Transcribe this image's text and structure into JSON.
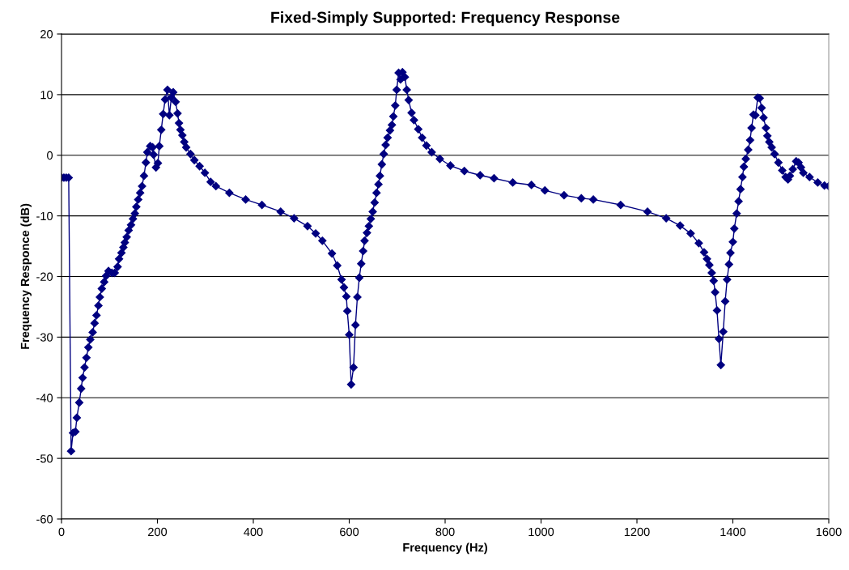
{
  "chart_data": {
    "type": "line",
    "title": "Fixed-Simply Supported: Frequency Response",
    "xlabel": "Frequency (Hz)",
    "ylabel": "Frequency Responce (dB)",
    "xlim": [
      0,
      1600
    ],
    "xticks": [
      0,
      200,
      400,
      600,
      800,
      1000,
      1200,
      1400,
      1600
    ],
    "ylim": [
      -60,
      20
    ],
    "yticks": [
      -60,
      -50,
      -40,
      -30,
      -20,
      -10,
      0,
      10,
      20
    ],
    "grid": "y",
    "marker": "diamond",
    "line_style": "solid",
    "series": [
      {
        "color": "#000080",
        "x": [
          0,
          5,
          10,
          15,
          20,
          24,
          29,
          32,
          37,
          41,
          44,
          48,
          52,
          56,
          60,
          65,
          69,
          73,
          77,
          80,
          84,
          89,
          93,
          98,
          105,
          111,
          117,
          120,
          125,
          129,
          132,
          136,
          140,
          145,
          149,
          153,
          156,
          160,
          164,
          168,
          172,
          176,
          179,
          185,
          190,
          192,
          197,
          201,
          204,
          208,
          212,
          216,
          221,
          225,
          229,
          233,
          238,
          242,
          245,
          248,
          252,
          256,
          260,
          269,
          277,
          288,
          299,
          311,
          322,
          350,
          384,
          418,
          457,
          485,
          513,
          530,
          544,
          564,
          575,
          584,
          589,
          594,
          596,
          600,
          604,
          609,
          613,
          617,
          621,
          625,
          629,
          632,
          637,
          641,
          645,
          649,
          653,
          657,
          661,
          664,
          668,
          672,
          676,
          680,
          685,
          689,
          692,
          696,
          699,
          703,
          707,
          711,
          716,
          720,
          724,
          730,
          735,
          744,
          752,
          761,
          772,
          789,
          811,
          840,
          873,
          902,
          941,
          980,
          1008,
          1048,
          1084,
          1109,
          1166,
          1222,
          1261,
          1290,
          1312,
          1329,
          1340,
          1346,
          1351,
          1356,
          1360,
          1363,
          1367,
          1371,
          1375,
          1380,
          1384,
          1388,
          1392,
          1395,
          1400,
          1403,
          1408,
          1412,
          1416,
          1420,
          1423,
          1427,
          1432,
          1436,
          1439,
          1443,
          1447,
          1452,
          1456,
          1460,
          1464,
          1469,
          1472,
          1476,
          1481,
          1487,
          1495,
          1503,
          1510,
          1515,
          1519,
          1525,
          1532,
          1537,
          1542,
          1547,
          1560,
          1577,
          1591,
          1600
        ],
        "values": [
          -3.7,
          -3.7,
          -3.7,
          -3.7,
          -48.8,
          -45.8,
          -45.6,
          -43.3,
          -40.8,
          -38.5,
          -36.7,
          -35.0,
          -33.4,
          -31.7,
          -30.4,
          -29.2,
          -27.7,
          -26.4,
          -24.8,
          -23.4,
          -22.0,
          -20.9,
          -19.9,
          -19.1,
          -19.4,
          -19.4,
          -18.4,
          -17.1,
          -16.1,
          -15.2,
          -14.4,
          -13.5,
          -12.4,
          -11.5,
          -10.5,
          -9.6,
          -8.5,
          -7.3,
          -6.2,
          -5.1,
          -3.4,
          -1.2,
          0.5,
          1.5,
          1.3,
          0.1,
          -2.0,
          -1.3,
          1.5,
          4.2,
          6.8,
          9.2,
          10.8,
          6.6,
          9.5,
          10.4,
          8.8,
          6.9,
          5.3,
          4.2,
          3.3,
          2.2,
          1.3,
          0.2,
          -0.8,
          -1.8,
          -2.9,
          -4.4,
          -5.1,
          -6.2,
          -7.3,
          -8.2,
          -9.3,
          -10.4,
          -11.7,
          -12.9,
          -14.1,
          -16.2,
          -18.2,
          -20.5,
          -21.8,
          -23.3,
          -25.7,
          -29.6,
          -37.8,
          -35.0,
          -28.0,
          -23.4,
          -20.2,
          -17.9,
          -15.8,
          -14.1,
          -12.8,
          -11.7,
          -10.5,
          -9.3,
          -7.8,
          -6.2,
          -4.8,
          -3.4,
          -1.5,
          0.2,
          1.7,
          2.9,
          4.1,
          5.0,
          6.4,
          8.2,
          10.8,
          13.6,
          12.5,
          13.7,
          12.9,
          10.8,
          9.1,
          7.0,
          5.8,
          4.3,
          2.9,
          1.6,
          0.5,
          -0.6,
          -1.7,
          -2.6,
          -3.3,
          -3.8,
          -4.5,
          -4.9,
          -5.8,
          -6.6,
          -7.1,
          -7.3,
          -8.2,
          -9.3,
          -10.4,
          -11.6,
          -12.9,
          -14.5,
          -16.0,
          -17.1,
          -18.1,
          -19.4,
          -20.7,
          -22.6,
          -25.6,
          -30.3,
          -34.6,
          -29.1,
          -24.1,
          -20.5,
          -18.0,
          -16.1,
          -14.3,
          -12.1,
          -9.6,
          -7.6,
          -5.6,
          -3.6,
          -1.9,
          -0.6,
          0.9,
          2.5,
          4.5,
          6.7,
          6.6,
          9.5,
          9.4,
          7.8,
          6.2,
          4.5,
          3.2,
          2.2,
          1.3,
          0.2,
          -1.2,
          -2.5,
          -3.6,
          -4.0,
          -3.4,
          -2.3,
          -1.0,
          -1.2,
          -2.0,
          -2.9,
          -3.6,
          -4.5,
          -5.0,
          -5.1
        ]
      }
    ]
  }
}
